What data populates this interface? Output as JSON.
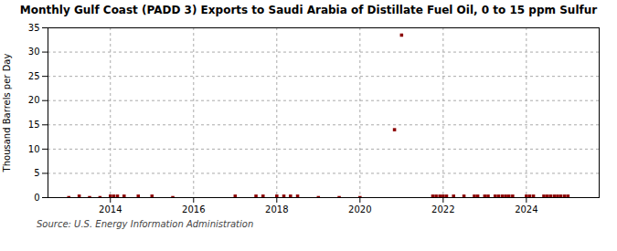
{
  "chart_data": {
    "type": "scatter",
    "title": "Monthly Gulf Coast (PADD 3) Exports to Saudi Arabia of Distillate Fuel Oil, 0 to 15 ppm Sulfur",
    "ylabel": "Thousand Barrels per Day",
    "source": "Source: U.S. Energy Information Administration",
    "color": "#8b0000",
    "marker": "square",
    "grid": true,
    "xlim": [
      2012.5,
      2025.75
    ],
    "xticks": [
      2014,
      2016,
      2018,
      2020,
      2022,
      2024
    ],
    "ylim": [
      0,
      35
    ],
    "yticks": [
      0,
      5,
      10,
      15,
      20,
      25,
      30,
      35
    ],
    "x": [
      2013.0,
      2013.25,
      2013.5,
      2013.75,
      2014.0,
      2014.08,
      2014.17,
      2014.33,
      2014.67,
      2015.0,
      2015.5,
      2017.0,
      2017.5,
      2017.67,
      2018.0,
      2018.17,
      2018.33,
      2018.5,
      2019.0,
      2019.5,
      2020.0,
      2020.83,
      2021.0,
      2021.75,
      2021.83,
      2021.92,
      2022.0,
      2022.08,
      2022.25,
      2022.5,
      2022.75,
      2022.83,
      2023.0,
      2023.08,
      2023.25,
      2023.33,
      2023.42,
      2023.5,
      2023.58,
      2023.67,
      2024.0,
      2024.08,
      2024.17,
      2024.42,
      2024.5,
      2024.58,
      2024.67,
      2024.75,
      2024.83,
      2024.92,
      2025.0
    ],
    "values": [
      0.0,
      0.3,
      0.0,
      0.0,
      0.3,
      0.3,
      0.3,
      0.3,
      0.3,
      0.3,
      0.0,
      0.3,
      0.3,
      0.3,
      0.3,
      0.3,
      0.3,
      0.3,
      0.0,
      0.0,
      0.0,
      14.0,
      33.5,
      0.3,
      0.3,
      0.3,
      0.3,
      0.3,
      0.3,
      0.3,
      0.3,
      0.3,
      0.3,
      0.3,
      0.3,
      0.3,
      0.3,
      0.3,
      0.3,
      0.3,
      0.3,
      0.3,
      0.3,
      0.3,
      0.3,
      0.3,
      0.3,
      0.3,
      0.3,
      0.3,
      0.3
    ]
  }
}
